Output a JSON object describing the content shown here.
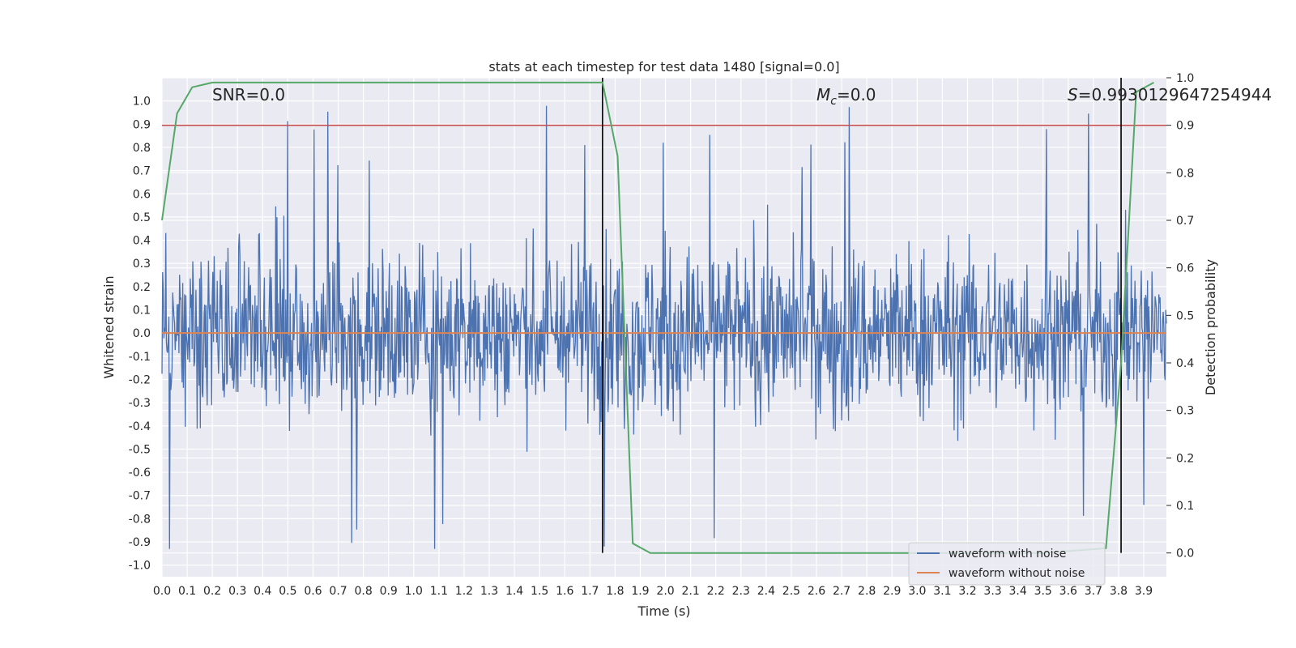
{
  "chart_data": {
    "type": "line",
    "title": "stats at each timestep for test data 1480 [signal=0.0]",
    "xlabel": "Time (s)",
    "ylabel": "Whitened strain",
    "y2label": "Detection probability",
    "xlim": [
      0.0,
      3.99
    ],
    "ylim": [
      -1.05,
      1.1
    ],
    "y2lim": [
      -0.05,
      1.0
    ],
    "x_ticks": [
      "0.0",
      "0.1",
      "0.2",
      "0.3",
      "0.4",
      "0.5",
      "0.6",
      "0.7",
      "0.8",
      "0.9",
      "1.0",
      "1.1",
      "1.2",
      "1.3",
      "1.4",
      "1.5",
      "1.6",
      "1.7",
      "1.8",
      "1.9",
      "2.0",
      "2.1",
      "2.2",
      "2.3",
      "2.4",
      "2.5",
      "2.6",
      "2.7",
      "2.8",
      "2.9",
      "3.0",
      "3.1",
      "3.2",
      "3.3",
      "3.4",
      "3.5",
      "3.6",
      "3.7",
      "3.8",
      "3.9"
    ],
    "y_ticks": [
      "-1.0",
      "-0.9",
      "-0.8",
      "-0.7",
      "-0.6",
      "-0.5",
      "-0.4",
      "-0.3",
      "-0.2",
      "-0.1",
      "0.0",
      "0.1",
      "0.2",
      "0.3",
      "0.4",
      "0.5",
      "0.6",
      "0.7",
      "0.8",
      "0.9",
      "1.0"
    ],
    "y2_ticks": [
      "0.0",
      "0.1",
      "0.2",
      "0.3",
      "0.4",
      "0.5",
      "0.6",
      "0.7",
      "0.8",
      "0.9",
      "1.0"
    ],
    "grid": true,
    "legend_position": "lower-right",
    "annotations": {
      "snr": "SNR=0.0",
      "mc_symbol": "M",
      "mc_sub": "c",
      "mc_rest": "=0.0",
      "s_symbol": "S",
      "s_rest": "=0.9930129647254944"
    },
    "series": [
      {
        "name": "waveform with noise",
        "axis": "left",
        "color": "#4c72b0",
        "style": "noise",
        "amplitude_range": [
          -0.93,
          1.0
        ],
        "sample_count": 1600
      },
      {
        "name": "waveform without noise",
        "axis": "left",
        "color": "#dd8452",
        "x": [
          0.0,
          3.99
        ],
        "y": [
          0.0,
          0.0
        ]
      },
      {
        "axis": "right",
        "color": "#55a868",
        "x": [
          0.0,
          0.06,
          0.12,
          0.2,
          0.3,
          0.5,
          1.0,
          1.5,
          1.7,
          1.75,
          1.81,
          1.87,
          1.94,
          2.0,
          2.5,
          3.0,
          3.5,
          3.75,
          3.81,
          3.87,
          3.94
        ],
        "y": [
          0.7,
          0.925,
          0.98,
          0.99,
          0.99,
          0.99,
          0.99,
          0.99,
          0.99,
          0.99,
          0.835,
          0.02,
          0.0,
          0.0,
          0.0,
          0.0,
          0.0,
          0.01,
          0.4,
          0.97,
          0.99
        ]
      }
    ],
    "hlines": [
      {
        "axis": "right",
        "y": 0.9,
        "color": "#c44e52"
      }
    ],
    "vlines": [
      {
        "x": 1.75,
        "y2_from": 0.0,
        "y2_to": 1.0,
        "color": "#000000"
      },
      {
        "x": 3.81,
        "y2_from": 0.0,
        "y2_to": 1.0,
        "color": "#000000"
      }
    ]
  }
}
